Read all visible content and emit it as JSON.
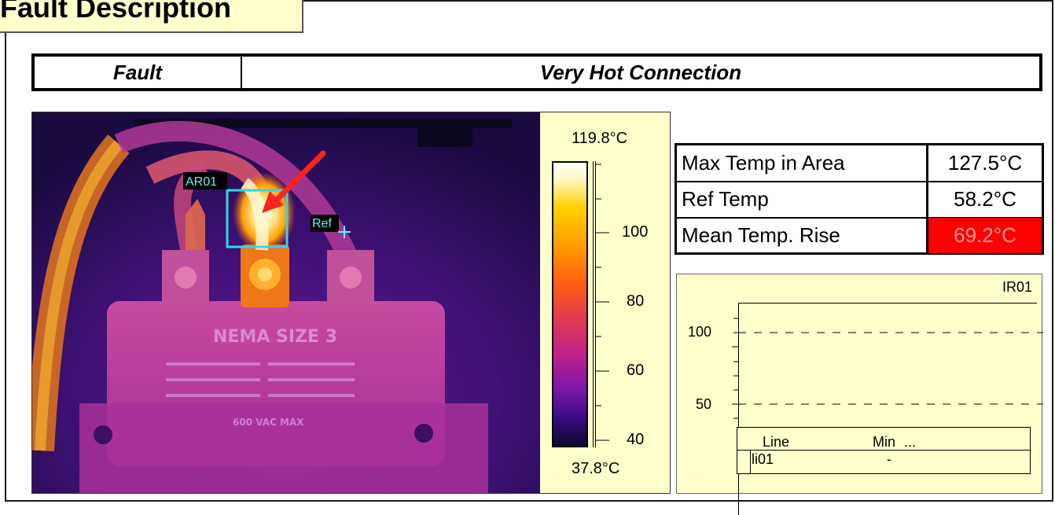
{
  "section": {
    "title": "Fault Description"
  },
  "fault": {
    "label": "Fault",
    "value": "Very Hot Connection"
  },
  "image": {
    "area_tag": "AR01",
    "ref_tag": "Ref",
    "label_nema": "NEMA SIZE 3",
    "label_rating": "600 VAC MAX",
    "colors": {
      "hot": "#ffffe0",
      "warm": "#ffa000",
      "mid": "#e03c60",
      "cool": "#7a1fa0",
      "cold": "#160a3c",
      "marker": "#33d6e6",
      "arrow": "#ff2020"
    }
  },
  "scale": {
    "max_label": "119.8°C",
    "min_label": "37.8°C",
    "min_value": 37.8,
    "max_value": 119.8,
    "ticks": [
      "100",
      "80",
      "60",
      "40"
    ]
  },
  "temps": {
    "rows": [
      {
        "label": "Max Temp in Area",
        "value": "127.5°C",
        "highlight": false
      },
      {
        "label": "Ref Temp",
        "value": "58.2°C",
        "highlight": false
      },
      {
        "label": "Mean Temp. Rise",
        "value": "69.2°C",
        "highlight": true
      }
    ],
    "highlight_color": "#ff0000"
  },
  "profile": {
    "name": "IR01",
    "y_ticks": [
      "100",
      "50"
    ],
    "table_headers": [
      "Line",
      "Min",
      "..."
    ],
    "table_row": [
      "li01",
      "-"
    ]
  }
}
